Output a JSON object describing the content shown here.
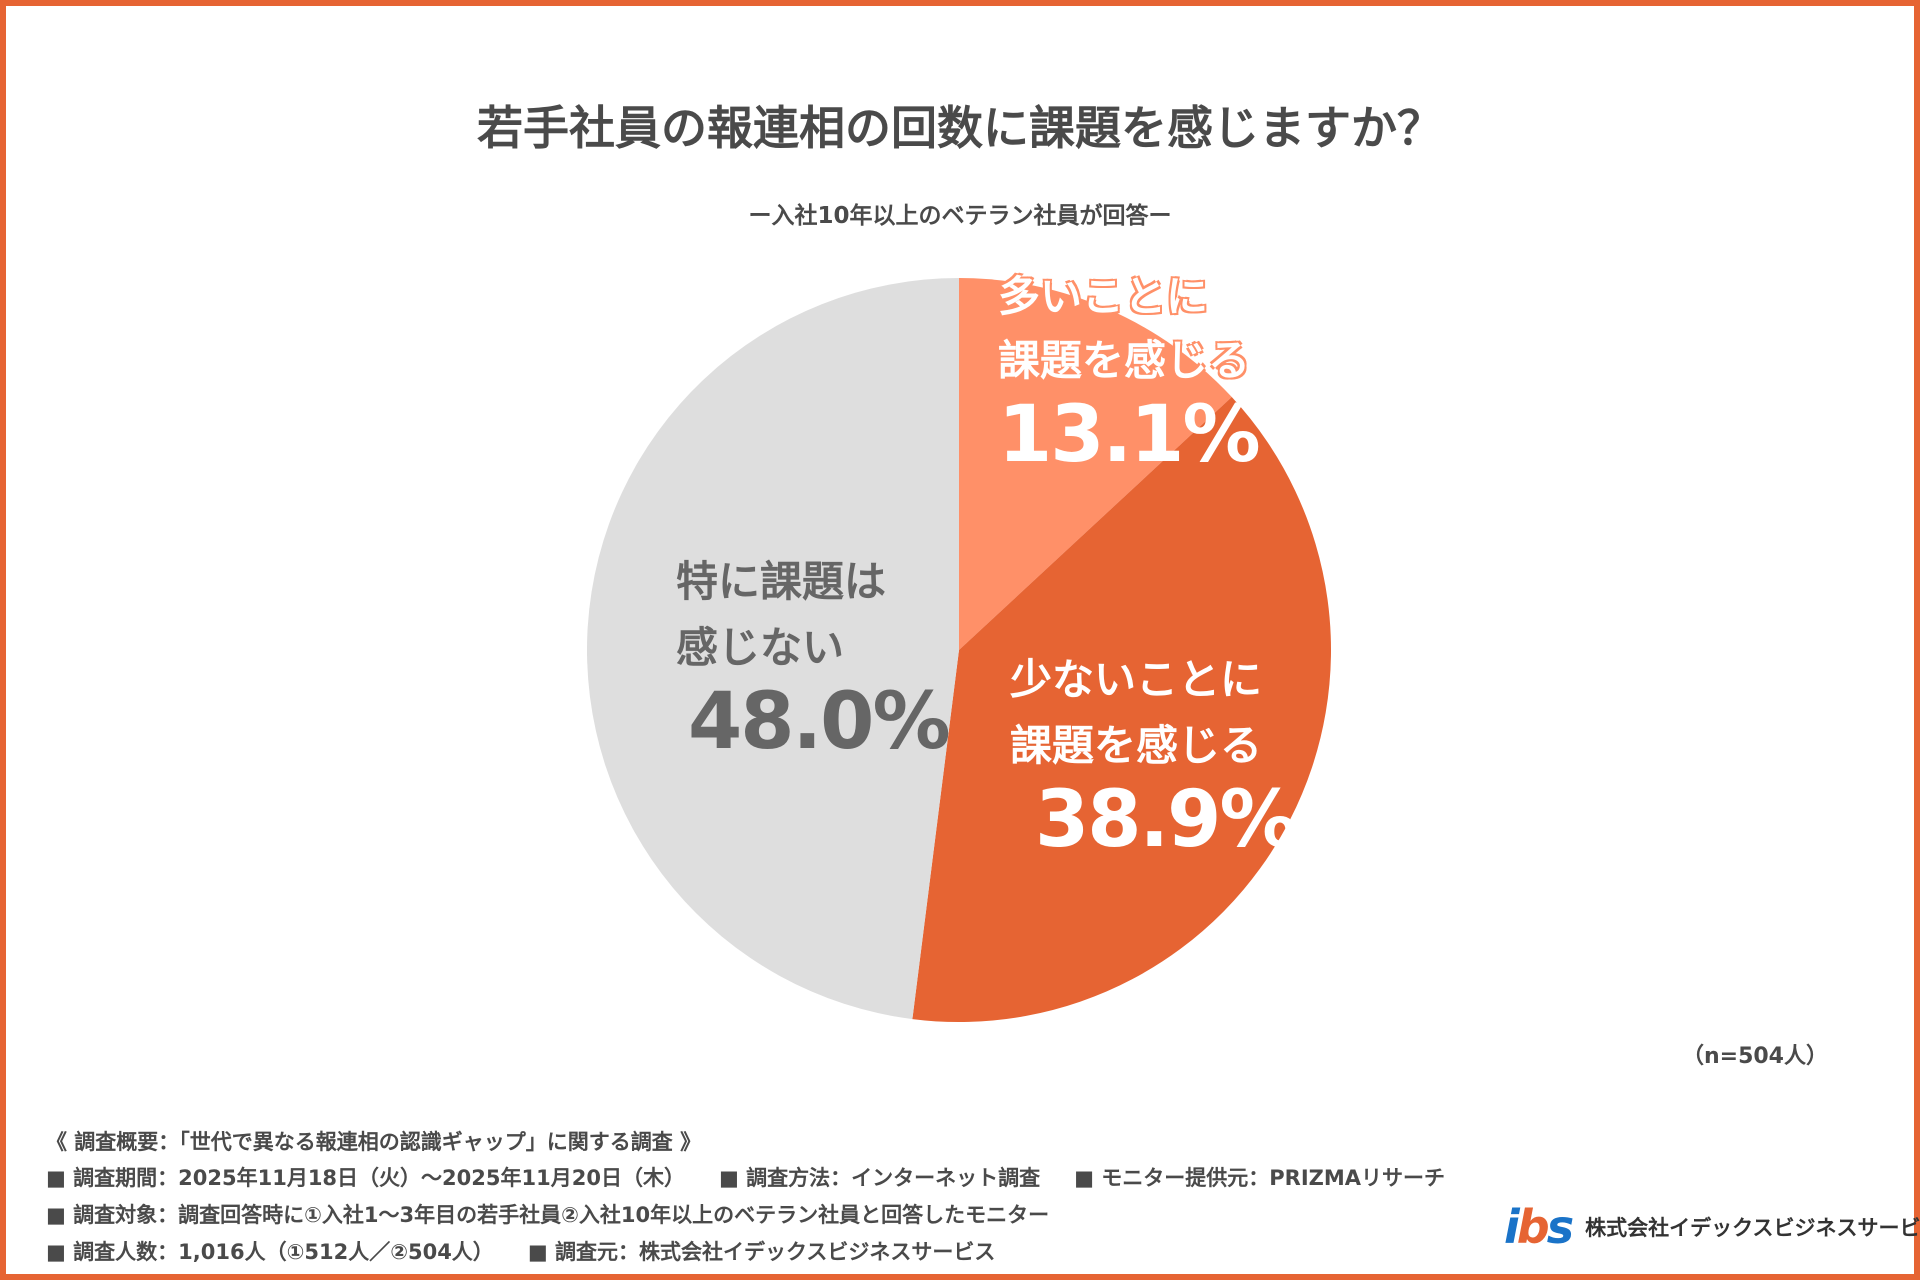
{
  "chart_data": {
    "type": "pie",
    "title": "若手社員の報連相の回数に課題を感じますか？",
    "subtitle": "ー入社10年以上のベテラン社員が回答ー",
    "start": "top",
    "direction": "clockwise",
    "slices": [
      {
        "label_line1": "多いことに",
        "label_line2": "課題を感じる",
        "value": 13.1,
        "display": "13.1%",
        "color": "#FF9068"
      },
      {
        "label_line1": "少ないことに",
        "label_line2": "課題を感じる",
        "value": 38.9,
        "display": "38.9%",
        "color": "#E66433"
      },
      {
        "label_line1": "特に課題は",
        "label_line2": "感じない",
        "value": 48.0,
        "display": "48.0%",
        "color": "#DEDEDE"
      }
    ],
    "sample": "（n=504人）"
  },
  "footer": {
    "heading": "《 調査概要：「世代で異なる報連相の認識ギャップ」に関する調査 》",
    "line1": [
      "■ 調査期間：2025年11月18日（火）〜2025年11月20日（木）",
      "■ 調査方法：インターネット調査",
      "■ モニター提供元：PRIZMAリサーチ"
    ],
    "line2": "■ 調査対象：調査回答時に①入社1〜3年目の若手社員②入社10年以上のベテラン社員と回答したモニター",
    "line3": [
      "■ 調査人数：1,016人（①512人／②504人）",
      "■ 調査元：株式会社イデックスビジネスサービス"
    ]
  },
  "logo": {
    "mark": "ibs",
    "company": "株式会社イデックスビジネスサービス"
  },
  "colors": {
    "border": "#E66433",
    "text": "#4a4a4a"
  }
}
